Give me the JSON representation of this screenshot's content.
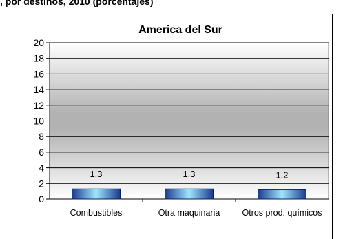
{
  "header": {
    "caption": ", por destinos, 2010 (porcentajes)"
  },
  "chart_data": {
    "type": "bar",
    "title": "America del Sur",
    "categories": [
      "Combustibles",
      "Otra maquinaria",
      "Otros prod. químicos"
    ],
    "values": [
      1.3,
      1.3,
      1.2
    ],
    "data_labels": [
      "1.3",
      "1.3",
      "1.2"
    ],
    "ylim": [
      0,
      20
    ],
    "yticks": [
      0,
      2,
      4,
      6,
      8,
      10,
      12,
      14,
      16,
      18,
      20
    ],
    "ytick_labels": [
      "0",
      "2",
      "4",
      "6",
      "8",
      "10",
      "12",
      "14",
      "16",
      "18",
      "20"
    ],
    "xlabel": "",
    "ylabel": "",
    "grid": true,
    "legend": "none",
    "colors": {
      "bar_dark": "#1b3a8c",
      "bar_mid": "#33aadd",
      "bar_light": "#9fe6ff",
      "plot_edge": "#ffffff",
      "plot_center": "#b2b2b2",
      "grid": "#000000"
    }
  }
}
